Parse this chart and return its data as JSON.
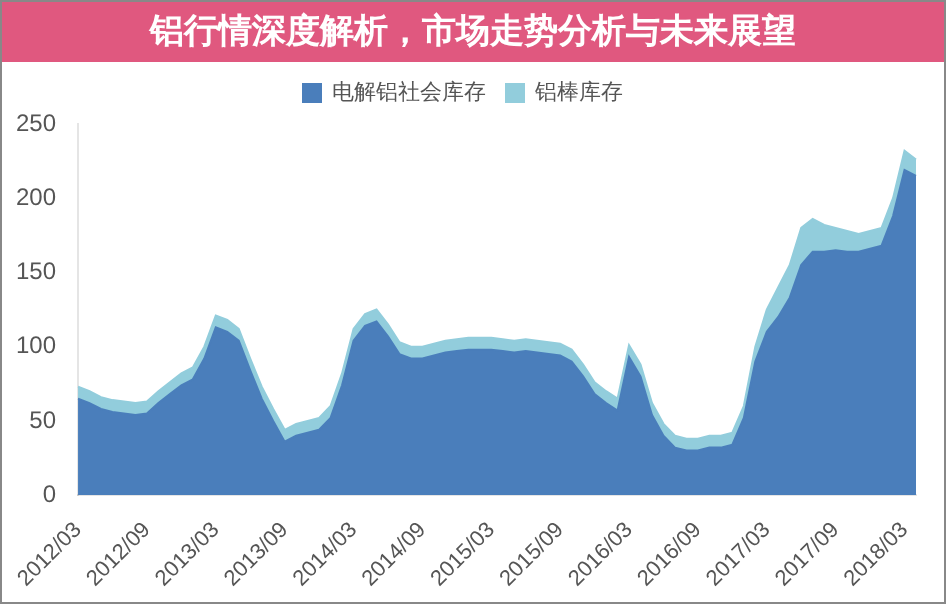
{
  "chart_data": {
    "type": "area",
    "title": "铝行情深度解析，市场走势分析与未来展望",
    "categories": [
      "2012/03",
      null,
      null,
      null,
      null,
      null,
      "2012/09",
      null,
      null,
      null,
      null,
      null,
      "2013/03",
      null,
      null,
      null,
      null,
      null,
      "2013/09",
      null,
      null,
      null,
      null,
      null,
      "2014/03",
      null,
      null,
      null,
      null,
      null,
      "2014/09",
      null,
      null,
      null,
      null,
      null,
      "2015/03",
      null,
      null,
      null,
      null,
      null,
      "2015/09",
      null,
      null,
      null,
      null,
      null,
      "2016/03",
      null,
      null,
      null,
      null,
      null,
      "2016/09",
      null,
      null,
      null,
      null,
      null,
      "2017/03",
      null,
      null,
      null,
      null,
      null,
      "2017/09",
      null,
      null,
      null,
      null,
      null,
      "2018/03",
      null
    ],
    "stacked": true,
    "series": [
      {
        "name": "电解铝社会库存",
        "color": "#4a7ebb",
        "values": [
          65,
          62,
          58,
          56,
          55,
          54,
          55,
          62,
          68,
          74,
          78,
          92,
          113,
          110,
          104,
          84,
          65,
          50,
          36,
          40,
          42,
          44,
          52,
          74,
          104,
          114,
          117,
          107,
          95,
          92,
          92,
          94,
          96,
          97,
          98,
          98,
          98,
          97,
          96,
          97,
          96,
          95,
          94,
          90,
          80,
          68,
          62,
          57,
          93,
          80,
          54,
          40,
          32,
          30,
          30,
          32,
          32,
          34,
          52,
          90,
          110,
          120,
          133,
          155,
          164,
          164,
          165,
          164,
          164,
          166,
          168,
          188,
          219,
          215
        ]
      },
      {
        "name": "铝棒库存",
        "color": "#92cddc",
        "values": [
          8,
          8,
          8,
          8,
          8,
          8,
          8,
          8,
          8,
          8,
          8,
          8,
          8,
          8,
          8,
          8,
          8,
          8,
          8,
          8,
          8,
          8,
          8,
          8,
          8,
          8,
          8,
          8,
          8,
          8,
          8,
          8,
          8,
          8,
          8,
          8,
          8,
          8,
          8,
          8,
          8,
          8,
          8,
          8,
          8,
          8,
          8,
          8,
          8,
          8,
          8,
          8,
          8,
          8,
          8,
          8,
          8,
          8,
          8,
          10,
          15,
          20,
          22,
          25,
          22,
          18,
          15,
          14,
          12,
          12,
          12,
          12,
          13,
          11
        ]
      }
    ],
    "ylim": [
      0,
      250
    ],
    "yticks": [
      0,
      50,
      100,
      150,
      200,
      250
    ],
    "grid": false,
    "legend": "top"
  }
}
